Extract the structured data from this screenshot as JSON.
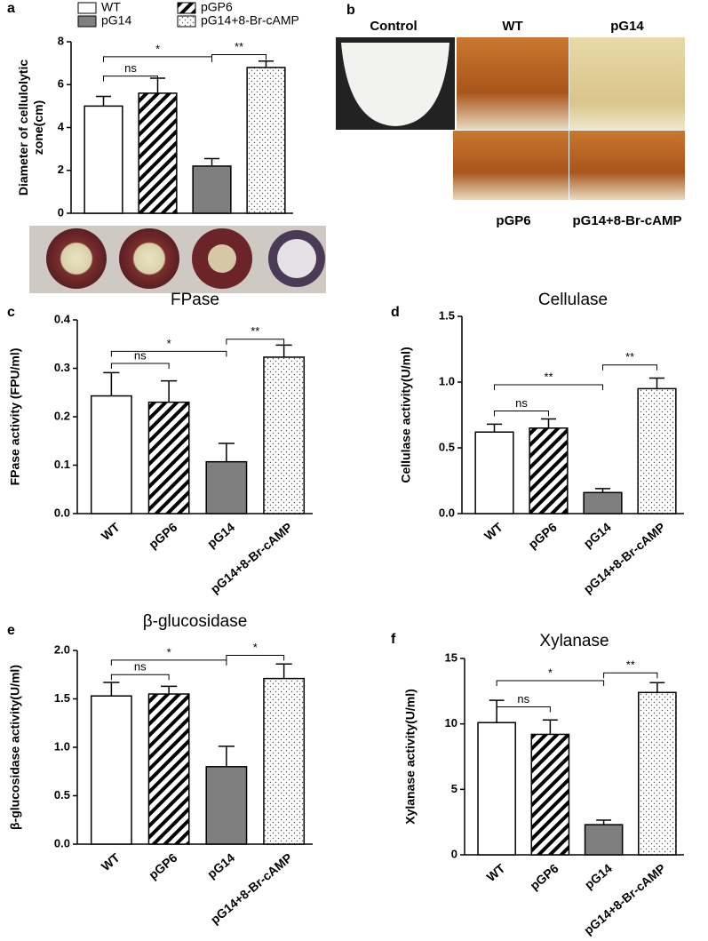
{
  "chart_data": [
    {
      "type": "bar",
      "panel": "a",
      "y_label": [
        "Diameter of  cellulolytic",
        "zone(cm)"
      ],
      "legend": true,
      "categories": [
        "WT",
        "pGP6",
        "pG14",
        "pG14+8-Br-cAMP"
      ],
      "fills": [
        "white",
        "hatch",
        "gray",
        "dots"
      ],
      "values": [
        5.0,
        5.6,
        2.2,
        6.8
      ],
      "errors": [
        0.45,
        0.7,
        0.35,
        0.3
      ],
      "ylim": [
        0,
        8
      ],
      "yticks": [
        0,
        2,
        4,
        6,
        8
      ],
      "brackets": [
        {
          "from": "WT",
          "to": "pGP6",
          "y": 6.4,
          "label": "ns"
        },
        {
          "from": "WT",
          "to": "pG14",
          "y": 7.3,
          "label": "*"
        },
        {
          "from": "pG14",
          "to": "pG14+8-Br-cAMP",
          "y": 7.4,
          "label": "**"
        }
      ]
    },
    {
      "type": "bar",
      "panel": "c",
      "title": "FPase",
      "y_label": [
        "FPase activity (FPU/ml)"
      ],
      "legend": false,
      "categories": [
        "WT",
        "pGP6",
        "pG14",
        "pG14+8-Br-cAMP"
      ],
      "fills": [
        "white",
        "hatch",
        "gray",
        "dots"
      ],
      "values": [
        0.243,
        0.23,
        0.107,
        0.323
      ],
      "errors": [
        0.048,
        0.044,
        0.038,
        0.025
      ],
      "ylim": [
        0,
        0.4
      ],
      "yticks": [
        {
          "value": 0,
          "label": "0.0"
        },
        0.1,
        0.2,
        0.3,
        0.4
      ],
      "brackets": [
        {
          "from": "WT",
          "to": "pGP6",
          "y": 0.31,
          "label": "ns"
        },
        {
          "from": "WT",
          "to": "pG14",
          "y": 0.335,
          "label": "*"
        },
        {
          "from": "pG14",
          "to": "pG14+8-Br-cAMP",
          "y": 0.36,
          "label": "**"
        }
      ]
    },
    {
      "type": "bar",
      "panel": "d",
      "title": "Cellulase",
      "y_label": [
        "Cellulase activity(U/ml)"
      ],
      "legend": false,
      "categories": [
        "WT",
        "pGP6",
        "pG14",
        "pG14+8-Br-cAMP"
      ],
      "fills": [
        "white",
        "hatch",
        "gray",
        "dots"
      ],
      "values": [
        0.62,
        0.65,
        0.16,
        0.95
      ],
      "errors": [
        0.06,
        0.07,
        0.03,
        0.08
      ],
      "ylim": [
        0,
        1.5
      ],
      "yticks": [
        {
          "value": 0,
          "label": "0.0"
        },
        0.5,
        {
          "value": 1,
          "label": "1.0"
        },
        1.5
      ],
      "brackets": [
        {
          "from": "WT",
          "to": "pGP6",
          "y": 0.78,
          "label": "ns"
        },
        {
          "from": "WT",
          "to": "pG14",
          "y": 0.98,
          "label": "**"
        },
        {
          "from": "pG14",
          "to": "pG14+8-Br-cAMP",
          "y": 1.13,
          "label": "**"
        }
      ]
    },
    {
      "type": "bar",
      "panel": "e",
      "title": "β-glucosidase",
      "y_label": [
        "β-glucosidase activity(U/ml)"
      ],
      "legend": false,
      "categories": [
        "WT",
        "pGP6",
        "pG14",
        "pG14+8-Br-cAMP"
      ],
      "fills": [
        "white",
        "hatch",
        "gray",
        "dots"
      ],
      "values": [
        1.53,
        1.55,
        0.8,
        1.71
      ],
      "errors": [
        0.14,
        0.08,
        0.21,
        0.15
      ],
      "ylim": [
        0,
        2
      ],
      "yticks": [
        {
          "value": 0,
          "label": "0.0"
        },
        0.5,
        {
          "value": 1,
          "label": "1.0"
        },
        1.5,
        {
          "value": 2,
          "label": "2.0"
        }
      ],
      "brackets": [
        {
          "from": "WT",
          "to": "pGP6",
          "y": 1.75,
          "label": "ns"
        },
        {
          "from": "WT",
          "to": "pG14",
          "y": 1.9,
          "label": "*"
        },
        {
          "from": "pG14",
          "to": "pG14+8-Br-cAMP",
          "y": 1.95,
          "label": "*"
        }
      ]
    },
    {
      "type": "bar",
      "panel": "f",
      "title": "Xylanase",
      "y_label": [
        "Xylanase activity(U/ml)"
      ],
      "legend": false,
      "categories": [
        "WT",
        "pGP6",
        "pG14",
        "pG14+8-Br-cAMP"
      ],
      "fills": [
        "white",
        "hatch",
        "gray",
        "dots"
      ],
      "values": [
        10.1,
        9.2,
        2.3,
        12.4
      ],
      "errors": [
        1.7,
        1.1,
        0.35,
        0.75
      ],
      "ylim": [
        0,
        15
      ],
      "yticks": [
        0,
        5,
        10,
        15
      ],
      "brackets": [
        {
          "from": "WT",
          "to": "pGP6",
          "y": 11.3,
          "label": "ns"
        },
        {
          "from": "WT",
          "to": "pG14",
          "y": 13.3,
          "label": "*"
        },
        {
          "from": "pG14",
          "to": "pG14+8-Br-cAMP",
          "y": 13.9,
          "label": "**"
        }
      ]
    }
  ],
  "photos": {
    "panel": "b",
    "labels": [
      "Control",
      "WT",
      "pG14",
      "pGP6",
      "pG14+8-Br-cAMP"
    ]
  }
}
